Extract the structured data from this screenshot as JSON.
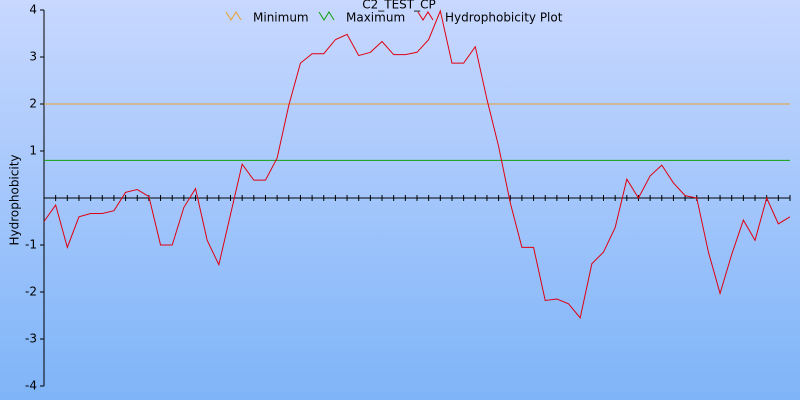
{
  "chart_data": {
    "type": "line",
    "title": "C2_TEST_CP",
    "ylabel": "Hydrophobicity",
    "ylim": [
      -4,
      4
    ],
    "yticks": [
      4,
      3,
      2,
      1,
      -1,
      -2,
      -3,
      -4
    ],
    "series": [
      {
        "name": "Minimum",
        "color": "#e8a030",
        "value": 2
      },
      {
        "name": "Maximum",
        "color": "#10a010",
        "value": 0.8
      },
      {
        "name": "Hydrophobicity Plot",
        "color": "#e00010",
        "values": [
          -0.5,
          -0.15,
          -1.05,
          -0.4,
          -0.33,
          -0.33,
          -0.27,
          0.12,
          0.18,
          0.03,
          -1.0,
          -1.0,
          -0.2,
          0.2,
          -0.9,
          -1.42,
          -0.35,
          0.72,
          0.38,
          0.38,
          0.85,
          1.97,
          2.87,
          3.07,
          3.07,
          3.37,
          3.48,
          3.03,
          3.1,
          3.33,
          3.05,
          3.05,
          3.1,
          3.37,
          3.98,
          2.87,
          2.87,
          3.22,
          2.1,
          1.1,
          -0.1,
          -1.05,
          -1.05,
          -2.18,
          -2.15,
          -2.25,
          -2.55,
          -1.4,
          -1.15,
          -0.63,
          0.4,
          0.0,
          0.47,
          0.7,
          0.32,
          0.05,
          0.0,
          -1.15,
          -2.03,
          -1.2,
          -0.47,
          -0.9,
          0.0,
          -0.55,
          -0.4
        ]
      }
    ]
  }
}
